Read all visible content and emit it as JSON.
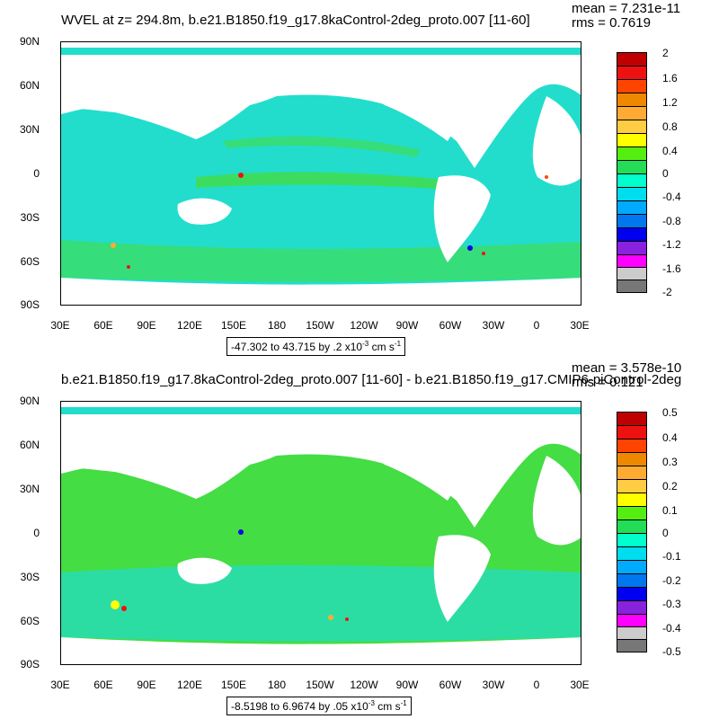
{
  "panel1": {
    "title": "WVEL at z= 294.8m, b.e21.B1850.f19_g17.8kaControl-2deg_proto.007 [11-60]",
    "mean": "mean = 7.231e-11",
    "rms": "rms = 0.7619",
    "range_text": "-47.302 to 43.715 by .2 x10",
    "range_exp": "-3",
    "range_unit": " cm s",
    "range_unit_exp": "-1",
    "colorbar_labels": [
      "2",
      "1.6",
      "1.2",
      "0.8",
      "0.4",
      "0",
      "-0.4",
      "-0.8",
      "-1.2",
      "-1.6",
      "-2"
    ]
  },
  "panel2": {
    "title": "b.e21.B1850.f19_g17.8kaControl-2deg_proto.007 [11-60] - b.e21.B1850.f19_g17.CMIP6-piControl-2deg",
    "mean": "mean = 3.578e-10",
    "rms": "rms = 0.121",
    "range_text": "-8.5198 to 6.9674 by .05 x10",
    "range_exp": "-3",
    "range_unit": " cm s",
    "range_unit_exp": "-1",
    "colorbar_labels": [
      "0.5",
      "0.4",
      "0.3",
      "0.2",
      "0.1",
      "0",
      "-0.1",
      "-0.2",
      "-0.3",
      "-0.4",
      "-0.5"
    ]
  },
  "axes": {
    "lat_labels": [
      "90N",
      "60N",
      "30N",
      "0",
      "30S",
      "60S",
      "90S"
    ],
    "lon_labels": [
      "30E",
      "60E",
      "90E",
      "120E",
      "150E",
      "180",
      "150W",
      "120W",
      "90W",
      "60W",
      "30W",
      "0",
      "30E"
    ]
  },
  "colors": {
    "colorbar": [
      "#c00000",
      "#ee1111",
      "#ff4400",
      "#ee8800",
      "#ffaa33",
      "#ffcc44",
      "#ffff00",
      "#55ee11",
      "#22dd55",
      "#00ffcc",
      "#00ddee",
      "#00aaff",
      "#0077ee",
      "#0000ee",
      "#8822dd",
      "#ff00ff",
      "#cccccc",
      "#777777"
    ],
    "ocean": "#22ddcc",
    "ocean_green": "#44dd44",
    "land": "#ffffff"
  }
}
